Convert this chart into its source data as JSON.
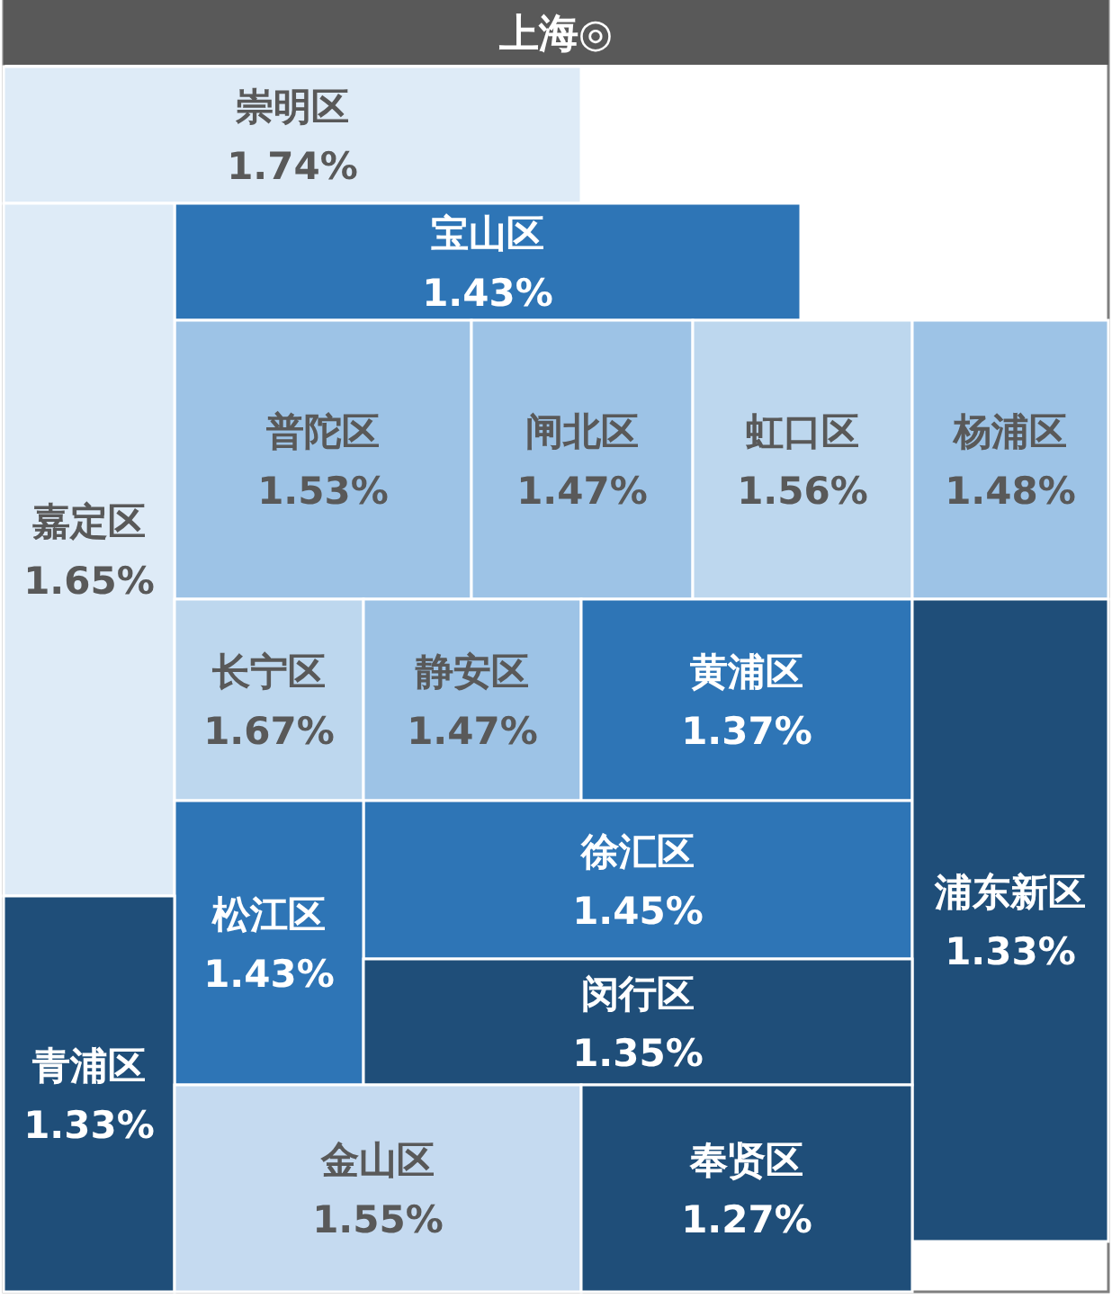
{
  "chart_data": {
    "type": "other",
    "title": "上海◎",
    "categories": [
      "崇明区",
      "宝山区",
      "普陀区",
      "闸北区",
      "虹口区",
      "杨浦区",
      "嘉定区",
      "长宁区",
      "静安区",
      "黄浦区",
      "徐汇区",
      "浦东新区",
      "松江区",
      "闵行区",
      "青浦区",
      "金山区",
      "奉贤区"
    ],
    "values": [
      1.74,
      1.43,
      1.53,
      1.47,
      1.56,
      1.48,
      1.65,
      1.67,
      1.47,
      1.37,
      1.45,
      1.33,
      1.43,
      1.35,
      1.33,
      1.55,
      1.27
    ],
    "value_labels": [
      "1.74%",
      "1.43%",
      "1.53%",
      "1.47%",
      "1.56%",
      "1.48%",
      "1.65%",
      "1.67%",
      "1.47%",
      "1.37%",
      "1.45%",
      "1.33%",
      "1.43%",
      "1.35%",
      "1.33%",
      "1.55%",
      "1.27%"
    ],
    "colors": [
      "#deebf7",
      "#2e75b6",
      "#9dc3e6",
      "#9dc3e6",
      "#bdd7ee",
      "#9dc3e6",
      "#deebf7",
      "#bdd7ee",
      "#9dc3e6",
      "#2e75b6",
      "#2e75b6",
      "#1f4e79",
      "#2e75b6",
      "#1f4e79",
      "#1f4e79",
      "#c5daf0",
      "#1f4e79"
    ]
  }
}
